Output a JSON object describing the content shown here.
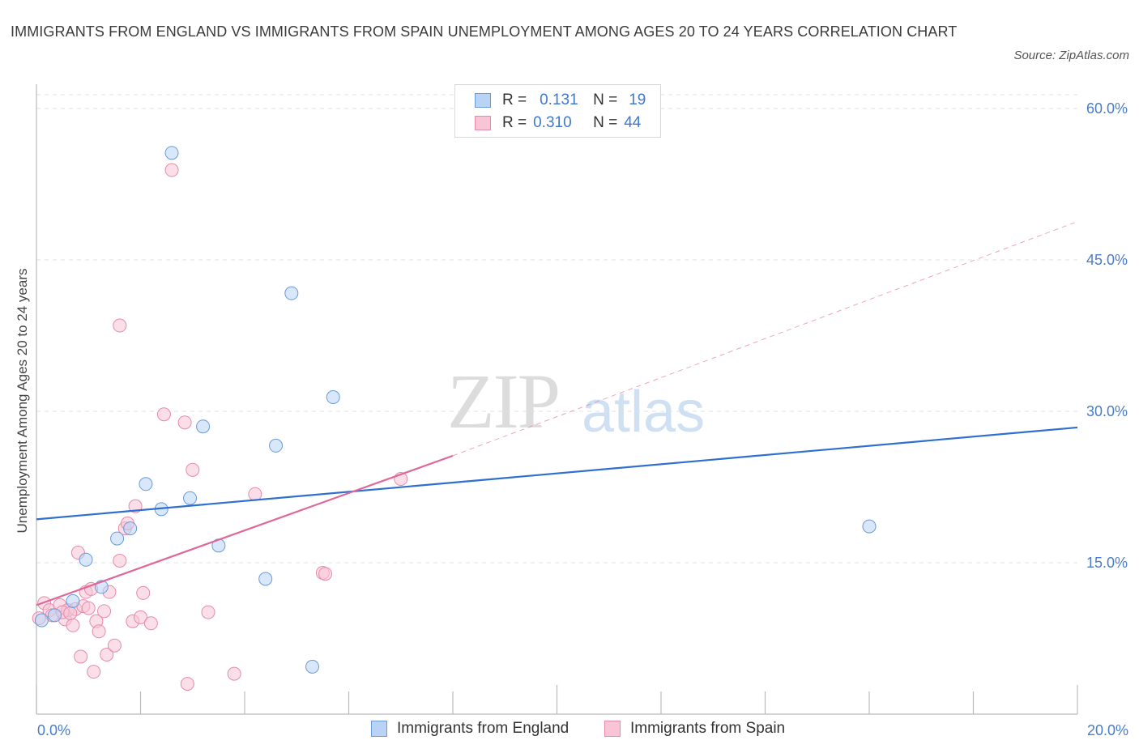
{
  "header": {
    "title": "IMMIGRANTS FROM ENGLAND VS IMMIGRANTS FROM SPAIN UNEMPLOYMENT AMONG AGES 20 TO 24 YEARS CORRELATION CHART",
    "source": "Source: ZipAtlas.com"
  },
  "watermark": {
    "zip": "ZIP",
    "atlas": "atlas"
  },
  "legend_top": {
    "rows": [
      {
        "r_label": "R =",
        "r_value": "0.131",
        "n_label": "N =",
        "n_value": "19"
      },
      {
        "r_label": "R =",
        "r_value": "0.310",
        "n_label": "N =",
        "n_value": "44"
      }
    ]
  },
  "legend_bottom": {
    "england": "Immigrants from England",
    "spain": "Immigrants from Spain"
  },
  "colors": {
    "england_fill": "#b8d3f5",
    "england_stroke": "#6a9ad8",
    "england_line": "#2f6fcf",
    "spain_fill": "#f8c4d6",
    "spain_stroke": "#e58aa9",
    "spain_line": "#e0679a",
    "grid": "#e2e2e2",
    "axis_text": "#4a7cc9"
  },
  "chart_data": {
    "type": "scatter",
    "title": "IMMIGRANTS FROM ENGLAND VS IMMIGRANTS FROM SPAIN UNEMPLOYMENT AMONG AGES 20 TO 24 YEARS CORRELATION CHART",
    "xlabel": "",
    "ylabel": "Unemployment Among Ages 20 to 24 years",
    "xlim": [
      0,
      20
    ],
    "ylim": [
      0,
      60
    ],
    "x_tick_labels": [
      "0.0%",
      "20.0%"
    ],
    "y_ticks": [
      15,
      30,
      45,
      60
    ],
    "y_tick_labels": [
      "15.0%",
      "30.0%",
      "45.0%",
      "60.0%"
    ],
    "grid": true,
    "series": [
      {
        "name": "Immigrants from England",
        "R": 0.131,
        "N": 19,
        "points": [
          [
            0.1,
            9.3
          ],
          [
            0.35,
            9.8
          ],
          [
            0.7,
            11.2
          ],
          [
            0.95,
            15.3
          ],
          [
            1.25,
            12.6
          ],
          [
            1.55,
            17.4
          ],
          [
            1.8,
            18.4
          ],
          [
            2.1,
            22.8
          ],
          [
            2.4,
            20.3
          ],
          [
            2.6,
            55.6
          ],
          [
            2.95,
            21.4
          ],
          [
            3.2,
            28.5
          ],
          [
            3.5,
            16.7
          ],
          [
            4.4,
            13.4
          ],
          [
            4.6,
            26.6
          ],
          [
            4.9,
            41.7
          ],
          [
            5.3,
            4.7
          ],
          [
            5.7,
            31.4
          ],
          [
            16.0,
            18.6
          ]
        ],
        "trend": {
          "x": [
            0,
            20
          ],
          "y": [
            19.3,
            28.4
          ]
        }
      },
      {
        "name": "Immigrants from Spain",
        "R": 0.31,
        "N": 44,
        "points": [
          [
            0.05,
            9.5
          ],
          [
            0.15,
            11.0
          ],
          [
            0.25,
            10.3
          ],
          [
            0.3,
            9.8
          ],
          [
            0.45,
            10.8
          ],
          [
            0.55,
            9.4
          ],
          [
            0.6,
            10.3
          ],
          [
            0.7,
            8.8
          ],
          [
            0.75,
            10.4
          ],
          [
            0.8,
            16.0
          ],
          [
            0.85,
            5.7
          ],
          [
            0.9,
            10.7
          ],
          [
            0.95,
            12.1
          ],
          [
            1.0,
            10.5
          ],
          [
            1.05,
            12.4
          ],
          [
            1.1,
            4.2
          ],
          [
            1.15,
            9.2
          ],
          [
            1.2,
            8.2
          ],
          [
            1.3,
            10.2
          ],
          [
            1.35,
            5.9
          ],
          [
            1.4,
            12.1
          ],
          [
            1.5,
            6.8
          ],
          [
            1.6,
            15.2
          ],
          [
            1.6,
            38.5
          ],
          [
            1.7,
            18.4
          ],
          [
            1.75,
            18.9
          ],
          [
            1.85,
            9.2
          ],
          [
            1.9,
            20.6
          ],
          [
            2.0,
            9.6
          ],
          [
            2.05,
            12.0
          ],
          [
            2.2,
            9.0
          ],
          [
            2.45,
            29.7
          ],
          [
            2.6,
            53.9
          ],
          [
            2.85,
            28.9
          ],
          [
            2.9,
            3.0
          ],
          [
            3.0,
            24.2
          ],
          [
            3.3,
            10.1
          ],
          [
            3.8,
            4.0
          ],
          [
            4.2,
            21.8
          ],
          [
            5.5,
            14.0
          ],
          [
            5.55,
            13.9
          ],
          [
            7.0,
            23.3
          ],
          [
            0.5,
            10.1
          ],
          [
            0.65,
            10.0
          ]
        ],
        "trend_solid": {
          "x": [
            0,
            8.0
          ],
          "y": [
            10.8,
            25.6
          ]
        },
        "trend_dashed": {
          "x": [
            8.0,
            20
          ],
          "y": [
            25.6,
            48.8
          ]
        }
      }
    ]
  }
}
